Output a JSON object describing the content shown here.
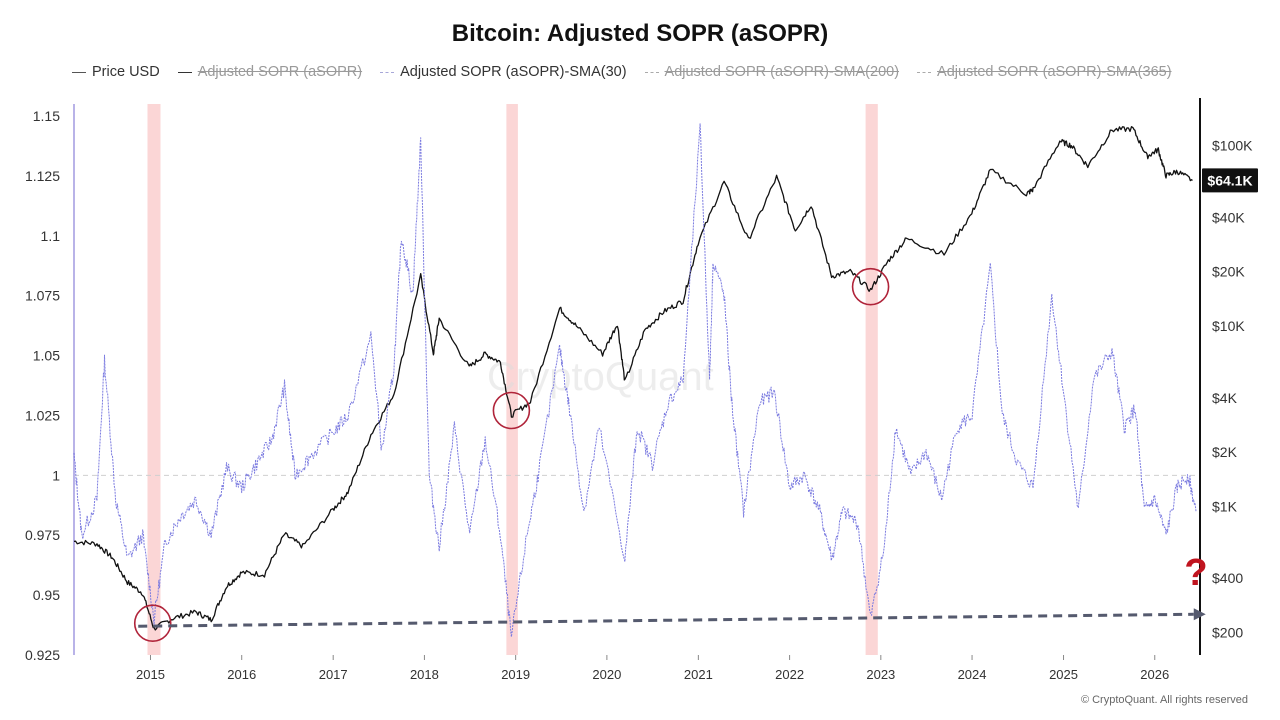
{
  "title": "Bitcoin: Adjusted SOPR (aSOPR)",
  "legend": [
    {
      "label": "Price USD",
      "enabled": true,
      "color": "#555555",
      "style": "solid"
    },
    {
      "label": "Adjusted SOPR (aSOPR)",
      "enabled": false,
      "color": "#333333",
      "style": "solid"
    },
    {
      "label": "Adjusted SOPR (aSOPR)-SMA(30)",
      "enabled": true,
      "color": "#7b7be0",
      "style": "dotted"
    },
    {
      "label": "Adjusted SOPR (aSOPR)-SMA(200)",
      "enabled": false,
      "color": "#aaaaaa",
      "style": "dashed"
    },
    {
      "label": "Adjusted SOPR (aSOPR)-SMA(365)",
      "enabled": false,
      "color": "#aaaaaa",
      "style": "dashed"
    }
  ],
  "watermark": "CryptoQuant",
  "copyright": "© CryptoQuant. All rights reserved",
  "price_badge": "$64.1K",
  "question_mark": "?",
  "chart_data": {
    "type": "line",
    "x_axis": {
      "type": "date",
      "tick_labels": [
        "2015",
        "2016",
        "2017",
        "2018",
        "2019",
        "2020",
        "2021",
        "2022",
        "2023",
        "2024",
        "2025",
        "2026"
      ],
      "range": [
        "2014-03-01",
        "2026-07-01"
      ]
    },
    "y_left": {
      "label": "",
      "tick_labels": [
        "1.15",
        "1.125",
        "1.1",
        "1.075",
        "1.05",
        "1.025",
        "1",
        "0.975",
        "0.95",
        "0.925"
      ],
      "range": [
        0.925,
        1.155
      ]
    },
    "y_right": {
      "label": "",
      "scale": "log",
      "tick_labels": [
        "$100K",
        "$40K",
        "$20K",
        "$10K",
        "$4K",
        "$2K",
        "$1K",
        "$400",
        "$200"
      ],
      "tick_values": [
        100000,
        40000,
        20000,
        10000,
        4000,
        2000,
        1000,
        400,
        200
      ],
      "range": [
        150,
        170000
      ]
    },
    "reference_line_y": 1,
    "series": [
      {
        "name": "Price USD",
        "axis": "right",
        "color": "#111111",
        "points": [
          [
            "2014-03-01",
            640
          ],
          [
            "2014-06-01",
            620
          ],
          [
            "2014-08-01",
            520
          ],
          [
            "2014-10-01",
            380
          ],
          [
            "2014-12-01",
            330
          ],
          [
            "2015-01-15",
            210
          ],
          [
            "2015-04-01",
            240
          ],
          [
            "2015-07-01",
            260
          ],
          [
            "2015-09-01",
            235
          ],
          [
            "2015-11-01",
            360
          ],
          [
            "2016-01-01",
            430
          ],
          [
            "2016-04-01",
            420
          ],
          [
            "2016-06-20",
            700
          ],
          [
            "2016-09-01",
            600
          ],
          [
            "2016-12-31",
            960
          ],
          [
            "2017-03-01",
            1200
          ],
          [
            "2017-06-01",
            2500
          ],
          [
            "2017-09-01",
            4200
          ],
          [
            "2017-12-17",
            19000
          ],
          [
            "2018-02-06",
            7000
          ],
          [
            "2018-03-01",
            11000
          ],
          [
            "2018-06-29",
            5900
          ],
          [
            "2018-09-01",
            7000
          ],
          [
            "2018-11-01",
            6300
          ],
          [
            "2018-12-15",
            3200
          ],
          [
            "2019-03-01",
            3800
          ],
          [
            "2019-06-26",
            12500
          ],
          [
            "2019-09-01",
            10000
          ],
          [
            "2019-12-15",
            7000
          ],
          [
            "2020-02-12",
            10300
          ],
          [
            "2020-03-13",
            4900
          ],
          [
            "2020-06-01",
            9500
          ],
          [
            "2020-08-15",
            12000
          ],
          [
            "2020-11-01",
            13800
          ],
          [
            "2020-12-31",
            29000
          ],
          [
            "2021-04-14",
            63000
          ],
          [
            "2021-07-20",
            30000
          ],
          [
            "2021-11-10",
            67000
          ],
          [
            "2022-01-24",
            34000
          ],
          [
            "2022-03-28",
            47000
          ],
          [
            "2022-06-18",
            18900
          ],
          [
            "2022-09-01",
            20000
          ],
          [
            "2022-11-21",
            15800
          ],
          [
            "2023-01-31",
            23000
          ],
          [
            "2023-04-14",
            30500
          ],
          [
            "2023-09-11",
            25000
          ],
          [
            "2023-12-31",
            42000
          ],
          [
            "2024-03-14",
            73000
          ],
          [
            "2024-08-05",
            54000
          ],
          [
            "2024-09-01",
            57000
          ],
          [
            "2024-12-17",
            106000
          ],
          [
            "2025-02-01",
            100000
          ],
          [
            "2025-04-08",
            77000
          ],
          [
            "2025-07-14",
            122000
          ],
          [
            "2025-10-06",
            124000
          ],
          [
            "2025-12-01",
            87000
          ],
          [
            "2026-01-15",
            95000
          ],
          [
            "2026-02-15",
            68000
          ],
          [
            "2026-04-01",
            72000
          ],
          [
            "2026-06-01",
            64100
          ]
        ]
      },
      {
        "name": "Adjusted SOPR (aSOPR)-SMA(30)",
        "axis": "left",
        "color": "#7b7be0",
        "points": [
          [
            "2014-03-01",
            1.008
          ],
          [
            "2014-04-01",
            0.975
          ],
          [
            "2014-06-01",
            0.99
          ],
          [
            "2014-07-01",
            1.048
          ],
          [
            "2014-08-15",
            0.99
          ],
          [
            "2014-10-01",
            0.965
          ],
          [
            "2014-12-01",
            0.975
          ],
          [
            "2015-01-15",
            0.94
          ],
          [
            "2015-03-01",
            0.972
          ],
          [
            "2015-05-01",
            0.983
          ],
          [
            "2015-07-01",
            0.99
          ],
          [
            "2015-09-01",
            0.975
          ],
          [
            "2015-11-01",
            1.003
          ],
          [
            "2016-01-01",
            0.995
          ],
          [
            "2016-03-01",
            1.005
          ],
          [
            "2016-05-01",
            1.015
          ],
          [
            "2016-06-20",
            1.037
          ],
          [
            "2016-08-01",
            1.0
          ],
          [
            "2016-10-01",
            1.008
          ],
          [
            "2016-12-31",
            1.018
          ],
          [
            "2017-03-01",
            1.025
          ],
          [
            "2017-06-01",
            1.058
          ],
          [
            "2017-07-15",
            1.01
          ],
          [
            "2017-09-01",
            1.045
          ],
          [
            "2017-10-01",
            1.1
          ],
          [
            "2017-11-15",
            1.075
          ],
          [
            "2017-12-17",
            1.14
          ],
          [
            "2018-01-20",
            1.0
          ],
          [
            "2018-03-01",
            0.97
          ],
          [
            "2018-05-01",
            1.02
          ],
          [
            "2018-07-01",
            0.975
          ],
          [
            "2018-09-01",
            1.015
          ],
          [
            "2018-11-01",
            0.975
          ],
          [
            "2018-12-15",
            0.932
          ],
          [
            "2019-02-15",
            0.975
          ],
          [
            "2019-04-01",
            1.0
          ],
          [
            "2019-06-26",
            1.053
          ],
          [
            "2019-08-01",
            1.03
          ],
          [
            "2019-10-01",
            0.985
          ],
          [
            "2019-12-01",
            1.02
          ],
          [
            "2020-03-13",
            0.965
          ],
          [
            "2020-05-01",
            1.02
          ],
          [
            "2020-07-01",
            1.005
          ],
          [
            "2020-09-01",
            1.03
          ],
          [
            "2020-11-01",
            1.04
          ],
          [
            "2021-01-08",
            1.145
          ],
          [
            "2021-02-15",
            1.04
          ],
          [
            "2021-03-01",
            1.09
          ],
          [
            "2021-04-14",
            1.075
          ],
          [
            "2021-05-15",
            1.03
          ],
          [
            "2021-07-01",
            0.985
          ],
          [
            "2021-09-01",
            1.03
          ],
          [
            "2021-11-01",
            1.035
          ],
          [
            "2022-01-01",
            0.995
          ],
          [
            "2022-03-01",
            1.0
          ],
          [
            "2022-05-01",
            0.985
          ],
          [
            "2022-06-20",
            0.965
          ],
          [
            "2022-08-01",
            0.985
          ],
          [
            "2022-10-01",
            0.98
          ],
          [
            "2022-11-21",
            0.94
          ],
          [
            "2023-01-15",
            0.97
          ],
          [
            "2023-03-01",
            1.02
          ],
          [
            "2023-05-01",
            1.0
          ],
          [
            "2023-07-01",
            1.01
          ],
          [
            "2023-09-01",
            0.99
          ],
          [
            "2023-11-01",
            1.02
          ],
          [
            "2024-01-01",
            1.025
          ],
          [
            "2024-03-14",
            1.087
          ],
          [
            "2024-05-01",
            1.025
          ],
          [
            "2024-07-01",
            1.005
          ],
          [
            "2024-09-01",
            0.995
          ],
          [
            "2024-11-15",
            1.075
          ],
          [
            "2025-01-01",
            1.035
          ],
          [
            "2025-03-01",
            0.985
          ],
          [
            "2025-05-01",
            1.04
          ],
          [
            "2025-07-14",
            1.052
          ],
          [
            "2025-09-01",
            1.02
          ],
          [
            "2025-10-15",
            1.028
          ],
          [
            "2025-11-20",
            0.985
          ],
          [
            "2026-01-01",
            0.99
          ],
          [
            "2026-02-15",
            0.975
          ],
          [
            "2026-04-01",
            0.995
          ],
          [
            "2026-05-15",
            1.0
          ],
          [
            "2026-06-15",
            0.985
          ]
        ]
      }
    ],
    "highlight_bands": [
      {
        "from": "2014-12-20",
        "to": "2015-02-10"
      },
      {
        "from": "2018-11-25",
        "to": "2019-01-10"
      },
      {
        "from": "2022-11-01",
        "to": "2022-12-20"
      }
    ],
    "annotations": [
      {
        "type": "circle",
        "date": "2015-01-10",
        "price": 225,
        "label": ""
      },
      {
        "type": "circle",
        "date": "2018-12-15",
        "price": 3400,
        "label": ""
      },
      {
        "type": "circle",
        "date": "2022-11-21",
        "price": 16500,
        "label": ""
      },
      {
        "type": "trend_arrow",
        "from": [
          "2015-02-01",
          0.937
        ],
        "to": [
          "2026-06-30",
          0.942
        ],
        "style": "dashed",
        "color": "#555a6e"
      }
    ]
  }
}
